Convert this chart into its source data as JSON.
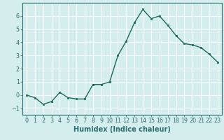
{
  "x": [
    0,
    1,
    2,
    3,
    4,
    5,
    6,
    7,
    8,
    9,
    10,
    11,
    12,
    13,
    14,
    15,
    16,
    17,
    18,
    19,
    20,
    21,
    22,
    23
  ],
  "y": [
    0.0,
    -0.2,
    -0.7,
    -0.5,
    0.2,
    -0.2,
    -0.3,
    -0.3,
    0.8,
    0.8,
    1.0,
    3.0,
    4.1,
    5.5,
    6.5,
    5.8,
    6.0,
    5.3,
    4.5,
    3.9,
    3.8,
    3.6,
    3.1,
    2.5
  ],
  "line_color": "#1a6b5a",
  "marker": "s",
  "marker_size": 2.0,
  "linewidth": 1.0,
  "xlabel": "Humidex (Indice chaleur)",
  "xlim": [
    -0.5,
    23.5
  ],
  "ylim": [
    -1.5,
    7.0
  ],
  "yticks": [
    -1,
    0,
    1,
    2,
    3,
    4,
    5,
    6
  ],
  "xticks": [
    0,
    1,
    2,
    3,
    4,
    5,
    6,
    7,
    8,
    9,
    10,
    11,
    12,
    13,
    14,
    15,
    16,
    17,
    18,
    19,
    20,
    21,
    22,
    23
  ],
  "bg_color": "#d4eeed",
  "grid_color": "#ffffff",
  "tick_label_fontsize": 5.8,
  "xlabel_fontsize": 7.0,
  "axis_color": "#2d6e6e",
  "spine_color": "#2d6e6e"
}
